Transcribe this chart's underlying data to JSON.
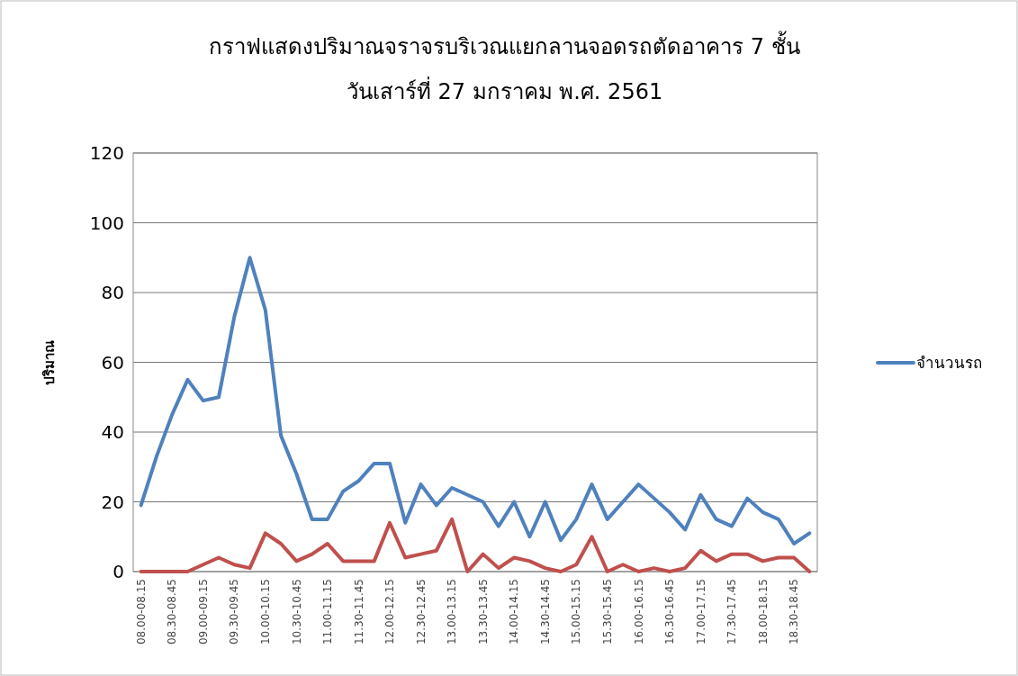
{
  "chart_data": {
    "type": "line",
    "title": "กราฟแสดงปริมาณจราจรบริเวณแยกลานจอดรถตัดอาคาร 7 ชั้น",
    "subtitle": "วันเสาร์ที่ 27 มกราคม พ.ศ. 2561",
    "ylabel": "ปริมาณ",
    "categories": [
      "08.00-08.15",
      null,
      "08.30-08.45",
      null,
      "09.00-09.15",
      null,
      "09.30-09.45",
      null,
      "10.00-10.15",
      null,
      "10.30-10.45",
      null,
      "11.00-11.15",
      null,
      "11.30-11.45",
      null,
      "12.00-12.15",
      null,
      "12.30-12.45",
      null,
      "13.00-13.15",
      null,
      "13.30-13.45",
      null,
      "14.00-14.15",
      null,
      "14.30-14.45",
      null,
      "15.00-15.15",
      null,
      "15.30-15.45",
      null,
      "16.00-16.15",
      null,
      "16.30-16.45",
      null,
      "17.00-17.15",
      null,
      "17.30-17.45",
      null,
      "18.00-18.15",
      null,
      "18.30-18.45",
      null
    ],
    "series": [
      {
        "name": "จำนวนรถ",
        "color": "#4f81bd",
        "values": [
          19,
          33,
          45,
          55,
          49,
          50,
          73,
          90,
          75,
          39,
          28,
          15,
          15,
          23,
          26,
          31,
          31,
          14,
          25,
          19,
          24,
          22,
          20,
          13,
          20,
          10,
          20,
          9,
          15,
          25,
          15,
          20,
          25,
          21,
          17,
          12,
          22,
          15,
          13,
          21,
          17,
          15,
          8,
          11
        ]
      },
      {
        "color": "#c0504d",
        "values": [
          0,
          0,
          0,
          0,
          2,
          4,
          2,
          1,
          11,
          8,
          3,
          5,
          8,
          3,
          3,
          3,
          14,
          4,
          5,
          6,
          15,
          0,
          5,
          1,
          4,
          3,
          1,
          0,
          2,
          10,
          0,
          2,
          0,
          1,
          0,
          1,
          6,
          3,
          5,
          5,
          3,
          4,
          4,
          0
        ]
      }
    ],
    "ylim": [
      0,
      120
    ],
    "yticks": [
      0,
      20,
      40,
      60,
      80,
      100,
      120
    ],
    "grid": "y",
    "legend": "right",
    "marker": "none",
    "line_style": "solid"
  }
}
